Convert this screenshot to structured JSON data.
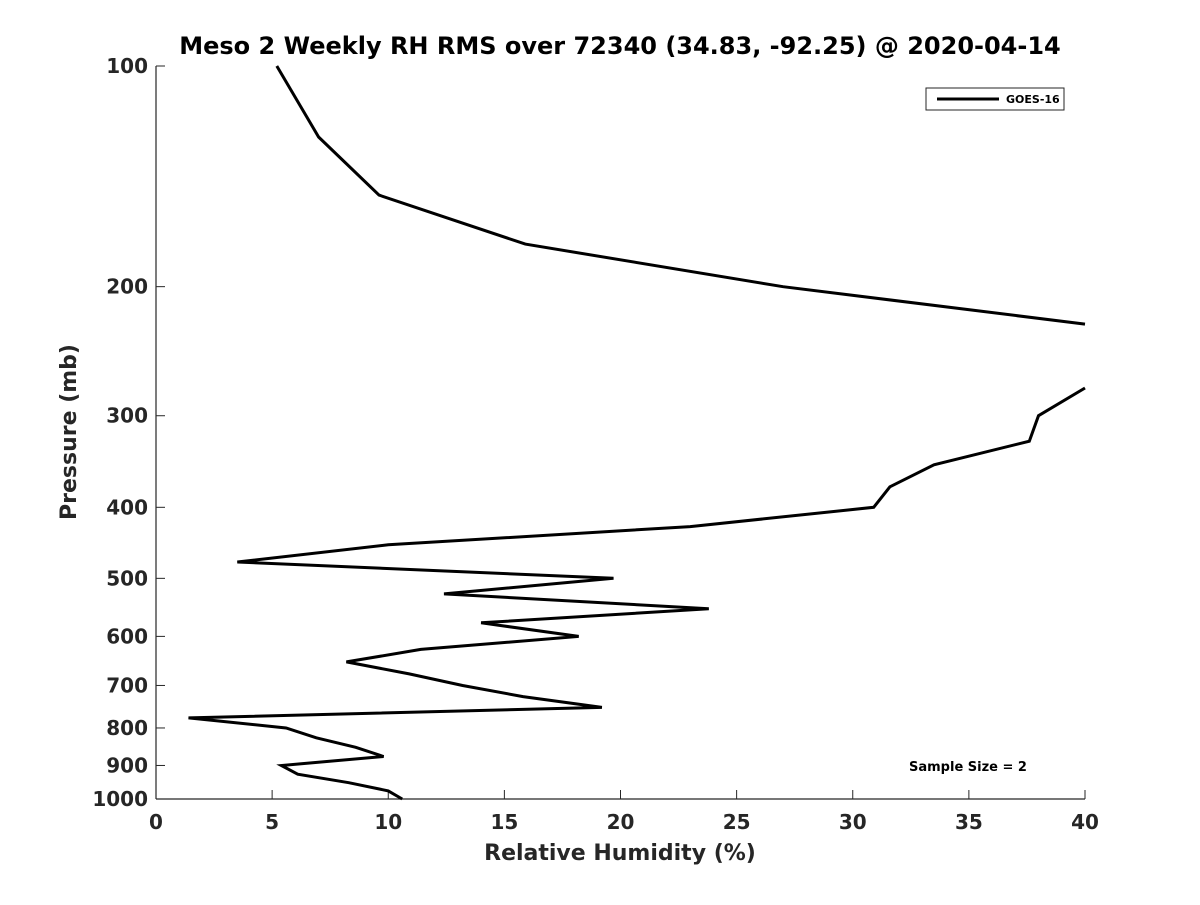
{
  "chart_data": {
    "type": "line",
    "title": "Meso 2 Weekly RH RMS over 72340 (34.83, -92.25) @ 2020-04-14",
    "xlabel": "Relative Humidity (%)",
    "ylabel": "Pressure (mb)",
    "xlim": [
      0,
      40
    ],
    "ylim": [
      100,
      1000
    ],
    "y_scale": "log",
    "y_reversed": true,
    "grid": false,
    "x_ticks": [
      0,
      5,
      10,
      15,
      20,
      25,
      30,
      35,
      40
    ],
    "y_ticks": [
      100,
      200,
      300,
      400,
      500,
      600,
      700,
      800,
      900,
      1000
    ],
    "legend": {
      "placement": "top-right",
      "entries": [
        "GOES-16"
      ]
    },
    "annotation": "Sample Size = 2",
    "series": [
      {
        "name": "GOES-16",
        "color": "#000000",
        "points": [
          {
            "x": 5.2,
            "y": 100
          },
          {
            "x": 7.0,
            "y": 125
          },
          {
            "x": 9.6,
            "y": 150
          },
          {
            "x": 15.9,
            "y": 175
          },
          {
            "x": 27.0,
            "y": 200
          },
          {
            "x": 40.0,
            "y": 225
          },
          {
            "x": null,
            "y": null
          },
          {
            "x": 40.0,
            "y": 275
          },
          {
            "x": 38.0,
            "y": 300
          },
          {
            "x": 37.6,
            "y": 325
          },
          {
            "x": 33.5,
            "y": 350
          },
          {
            "x": 31.6,
            "y": 375
          },
          {
            "x": 30.9,
            "y": 400
          },
          {
            "x": 23.0,
            "y": 425
          },
          {
            "x": 10.0,
            "y": 450
          },
          {
            "x": 3.5,
            "y": 475
          },
          {
            "x": 19.7,
            "y": 500
          },
          {
            "x": 12.4,
            "y": 525
          },
          {
            "x": 23.8,
            "y": 550
          },
          {
            "x": 14.0,
            "y": 575
          },
          {
            "x": 18.2,
            "y": 600
          },
          {
            "x": 11.4,
            "y": 625
          },
          {
            "x": 8.2,
            "y": 650
          },
          {
            "x": 10.9,
            "y": 675
          },
          {
            "x": 13.2,
            "y": 700
          },
          {
            "x": 15.8,
            "y": 725
          },
          {
            "x": 19.2,
            "y": 750
          },
          {
            "x": 1.4,
            "y": 775
          },
          {
            "x": 5.6,
            "y": 800
          },
          {
            "x": 6.9,
            "y": 825
          },
          {
            "x": 8.6,
            "y": 850
          },
          {
            "x": 9.8,
            "y": 875
          },
          {
            "x": 5.4,
            "y": 900
          },
          {
            "x": 6.1,
            "y": 925
          },
          {
            "x": 8.3,
            "y": 950
          },
          {
            "x": 10.0,
            "y": 975
          },
          {
            "x": 10.6,
            "y": 1000
          }
        ]
      }
    ]
  }
}
